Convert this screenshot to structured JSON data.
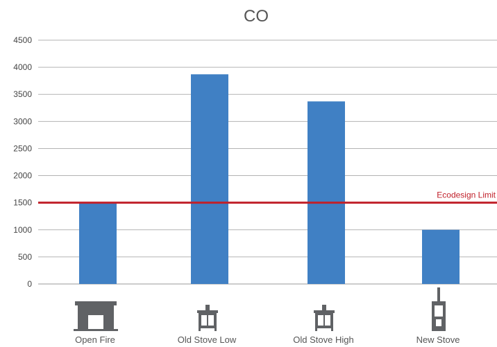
{
  "chart_data": {
    "type": "bar",
    "title": "CO",
    "categories": [
      "Open Fire",
      "Old Stove Low",
      "Old Stove High",
      "New Stove"
    ],
    "category_icons": [
      "fireplace-icon",
      "stove-icon",
      "stove-icon",
      "tall-stove-icon"
    ],
    "values": [
      1500,
      3870,
      3370,
      1000
    ],
    "ylim": [
      0,
      4500
    ],
    "yticks": [
      0,
      500,
      1000,
      1500,
      2000,
      2500,
      3000,
      3500,
      4000,
      4500
    ],
    "grid": true,
    "bar_color": "#4080c4",
    "reference_line": {
      "label": "Ecodesign Limit",
      "value": 1500,
      "color": "#c0202a"
    }
  }
}
